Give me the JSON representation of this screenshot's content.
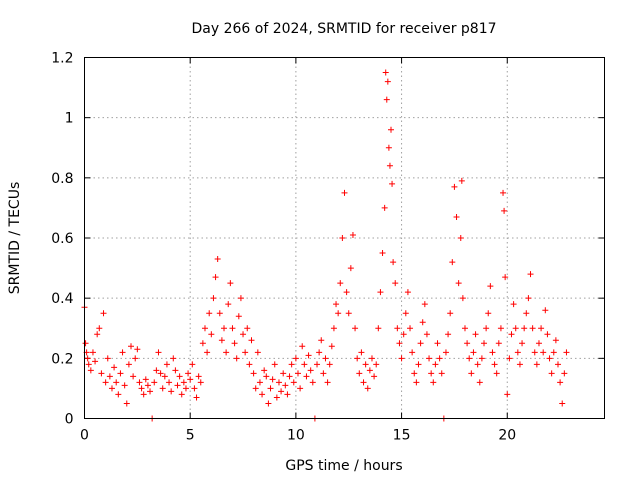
{
  "chart_data": {
    "type": "scatter",
    "title": "Day 266 of 2024, SRMTID for receiver p817",
    "xlabel": "GPS time / hours",
    "ylabel": "SRMTID / TECUs",
    "xlim": [
      0,
      24.6
    ],
    "ylim": [
      0,
      1.2
    ],
    "x_ticks": [
      0,
      5,
      10,
      15,
      20
    ],
    "x_tick_labels": [
      "0",
      "5",
      "10",
      "15",
      "20"
    ],
    "y_ticks": [
      0,
      0.2,
      0.4,
      0.6,
      0.8,
      1.0,
      1.2
    ],
    "y_tick_labels": [
      "0",
      "0.2",
      "0.4",
      "0.6",
      "0.8",
      "1",
      "1.2"
    ],
    "grid": true,
    "marker": "plus",
    "color": "#ff0000",
    "series": [
      {
        "name": "SRMTID",
        "points": [
          [
            0.0,
            0.37
          ],
          [
            0.05,
            0.25
          ],
          [
            0.1,
            0.22
          ],
          [
            0.15,
            0.2
          ],
          [
            0.2,
            0.18
          ],
          [
            0.3,
            0.16
          ],
          [
            0.4,
            0.22
          ],
          [
            0.5,
            0.19
          ],
          [
            0.6,
            0.28
          ],
          [
            0.7,
            0.3
          ],
          [
            0.8,
            0.15
          ],
          [
            0.9,
            0.35
          ],
          [
            1.0,
            0.12
          ],
          [
            1.1,
            0.2
          ],
          [
            1.2,
            0.14
          ],
          [
            1.3,
            0.1
          ],
          [
            1.4,
            0.17
          ],
          [
            1.5,
            0.12
          ],
          [
            1.6,
            0.08
          ],
          [
            1.7,
            0.15
          ],
          [
            1.8,
            0.22
          ],
          [
            1.9,
            0.11
          ],
          [
            2.0,
            0.05
          ],
          [
            2.1,
            0.18
          ],
          [
            2.2,
            0.24
          ],
          [
            2.3,
            0.14
          ],
          [
            2.4,
            0.2
          ],
          [
            2.5,
            0.23
          ],
          [
            2.6,
            0.12
          ],
          [
            2.7,
            0.1
          ],
          [
            2.8,
            0.08
          ],
          [
            2.9,
            0.13
          ],
          [
            3.0,
            0.11
          ],
          [
            3.1,
            0.09
          ],
          [
            3.2,
            0.0
          ],
          [
            3.3,
            0.12
          ],
          [
            3.4,
            0.16
          ],
          [
            3.5,
            0.22
          ],
          [
            3.6,
            0.15
          ],
          [
            3.7,
            0.1
          ],
          [
            3.8,
            0.14
          ],
          [
            3.9,
            0.18
          ],
          [
            4.0,
            0.12
          ],
          [
            4.1,
            0.09
          ],
          [
            4.2,
            0.2
          ],
          [
            4.3,
            0.16
          ],
          [
            4.4,
            0.11
          ],
          [
            4.5,
            0.14
          ],
          [
            4.6,
            0.08
          ],
          [
            4.7,
            0.12
          ],
          [
            4.8,
            0.1
          ],
          [
            4.9,
            0.15
          ],
          [
            5.0,
            0.13
          ],
          [
            5.1,
            0.18
          ],
          [
            5.2,
            0.1
          ],
          [
            5.3,
            0.07
          ],
          [
            5.4,
            0.14
          ],
          [
            5.5,
            0.12
          ],
          [
            5.6,
            0.25
          ],
          [
            5.7,
            0.3
          ],
          [
            5.8,
            0.22
          ],
          [
            5.9,
            0.35
          ],
          [
            6.0,
            0.28
          ],
          [
            6.1,
            0.4
          ],
          [
            6.2,
            0.47
          ],
          [
            6.3,
            0.53
          ],
          [
            6.4,
            0.35
          ],
          [
            6.5,
            0.26
          ],
          [
            6.6,
            0.3
          ],
          [
            6.7,
            0.22
          ],
          [
            6.8,
            0.38
          ],
          [
            6.9,
            0.45
          ],
          [
            7.0,
            0.3
          ],
          [
            7.1,
            0.25
          ],
          [
            7.2,
            0.2
          ],
          [
            7.3,
            0.34
          ],
          [
            7.4,
            0.4
          ],
          [
            7.5,
            0.28
          ],
          [
            7.6,
            0.22
          ],
          [
            7.7,
            0.3
          ],
          [
            7.8,
            0.18
          ],
          [
            7.9,
            0.26
          ],
          [
            8.0,
            0.15
          ],
          [
            8.1,
            0.1
          ],
          [
            8.2,
            0.22
          ],
          [
            8.3,
            0.12
          ],
          [
            8.4,
            0.08
          ],
          [
            8.5,
            0.16
          ],
          [
            8.6,
            0.14
          ],
          [
            8.7,
            0.05
          ],
          [
            8.8,
            0.1
          ],
          [
            8.9,
            0.13
          ],
          [
            9.0,
            0.18
          ],
          [
            9.1,
            0.07
          ],
          [
            9.2,
            0.12
          ],
          [
            9.3,
            0.09
          ],
          [
            9.4,
            0.15
          ],
          [
            9.5,
            0.11
          ],
          [
            9.6,
            0.08
          ],
          [
            9.7,
            0.14
          ],
          [
            9.8,
            0.18
          ],
          [
            9.9,
            0.12
          ],
          [
            10.0,
            0.2
          ],
          [
            10.1,
            0.15
          ],
          [
            10.2,
            0.1
          ],
          [
            10.3,
            0.24
          ],
          [
            10.4,
            0.18
          ],
          [
            10.5,
            0.14
          ],
          [
            10.6,
            0.21
          ],
          [
            10.7,
            0.16
          ],
          [
            10.8,
            0.12
          ],
          [
            10.9,
            0.0
          ],
          [
            11.0,
            0.18
          ],
          [
            11.1,
            0.22
          ],
          [
            11.2,
            0.26
          ],
          [
            11.3,
            0.15
          ],
          [
            11.4,
            0.2
          ],
          [
            11.5,
            0.12
          ],
          [
            11.6,
            0.18
          ],
          [
            11.7,
            0.24
          ],
          [
            11.8,
            0.3
          ],
          [
            11.9,
            0.38
          ],
          [
            12.0,
            0.35
          ],
          [
            12.1,
            0.45
          ],
          [
            12.2,
            0.6
          ],
          [
            12.3,
            0.75
          ],
          [
            12.4,
            0.42
          ],
          [
            12.5,
            0.35
          ],
          [
            12.6,
            0.5
          ],
          [
            12.7,
            0.61
          ],
          [
            12.8,
            0.3
          ],
          [
            12.9,
            0.2
          ],
          [
            13.0,
            0.15
          ],
          [
            13.1,
            0.22
          ],
          [
            13.2,
            0.12
          ],
          [
            13.3,
            0.18
          ],
          [
            13.4,
            0.1
          ],
          [
            13.5,
            0.16
          ],
          [
            13.6,
            0.2
          ],
          [
            13.7,
            0.14
          ],
          [
            13.8,
            0.18
          ],
          [
            13.9,
            0.3
          ],
          [
            14.0,
            0.42
          ],
          [
            14.1,
            0.55
          ],
          [
            14.2,
            0.7
          ],
          [
            14.25,
            1.15
          ],
          [
            14.3,
            1.06
          ],
          [
            14.35,
            1.12
          ],
          [
            14.4,
            0.9
          ],
          [
            14.45,
            0.84
          ],
          [
            14.5,
            0.96
          ],
          [
            14.55,
            0.78
          ],
          [
            14.6,
            0.52
          ],
          [
            14.7,
            0.45
          ],
          [
            14.8,
            0.3
          ],
          [
            14.9,
            0.25
          ],
          [
            15.0,
            0.2
          ],
          [
            15.1,
            0.28
          ],
          [
            15.2,
            0.35
          ],
          [
            15.3,
            0.42
          ],
          [
            15.4,
            0.3
          ],
          [
            15.5,
            0.22
          ],
          [
            15.6,
            0.15
          ],
          [
            15.7,
            0.12
          ],
          [
            15.8,
            0.18
          ],
          [
            15.9,
            0.25
          ],
          [
            16.0,
            0.32
          ],
          [
            16.1,
            0.38
          ],
          [
            16.2,
            0.28
          ],
          [
            16.3,
            0.2
          ],
          [
            16.4,
            0.15
          ],
          [
            16.5,
            0.12
          ],
          [
            16.6,
            0.18
          ],
          [
            16.7,
            0.25
          ],
          [
            16.8,
            0.2
          ],
          [
            16.9,
            0.15
          ],
          [
            17.0,
            0.0
          ],
          [
            17.1,
            0.22
          ],
          [
            17.2,
            0.28
          ],
          [
            17.3,
            0.35
          ],
          [
            17.4,
            0.52
          ],
          [
            17.5,
            0.77
          ],
          [
            17.6,
            0.67
          ],
          [
            17.7,
            0.45
          ],
          [
            17.8,
            0.6
          ],
          [
            17.85,
            0.79
          ],
          [
            17.9,
            0.4
          ],
          [
            18.0,
            0.3
          ],
          [
            18.1,
            0.25
          ],
          [
            18.2,
            0.2
          ],
          [
            18.3,
            0.15
          ],
          [
            18.4,
            0.22
          ],
          [
            18.5,
            0.28
          ],
          [
            18.6,
            0.18
          ],
          [
            18.7,
            0.12
          ],
          [
            18.8,
            0.2
          ],
          [
            18.9,
            0.25
          ],
          [
            19.0,
            0.3
          ],
          [
            19.1,
            0.35
          ],
          [
            19.2,
            0.44
          ],
          [
            19.3,
            0.22
          ],
          [
            19.4,
            0.18
          ],
          [
            19.5,
            0.15
          ],
          [
            19.6,
            0.25
          ],
          [
            19.7,
            0.3
          ],
          [
            19.8,
            0.75
          ],
          [
            19.85,
            0.69
          ],
          [
            19.9,
            0.47
          ],
          [
            20.0,
            0.08
          ],
          [
            20.1,
            0.2
          ],
          [
            20.2,
            0.28
          ],
          [
            20.3,
            0.38
          ],
          [
            20.4,
            0.3
          ],
          [
            20.5,
            0.22
          ],
          [
            20.6,
            0.18
          ],
          [
            20.7,
            0.25
          ],
          [
            20.8,
            0.3
          ],
          [
            20.9,
            0.35
          ],
          [
            21.0,
            0.4
          ],
          [
            21.1,
            0.48
          ],
          [
            21.2,
            0.3
          ],
          [
            21.3,
            0.22
          ],
          [
            21.4,
            0.18
          ],
          [
            21.5,
            0.25
          ],
          [
            21.6,
            0.3
          ],
          [
            21.7,
            0.22
          ],
          [
            21.8,
            0.36
          ],
          [
            21.9,
            0.28
          ],
          [
            22.0,
            0.2
          ],
          [
            22.1,
            0.15
          ],
          [
            22.2,
            0.22
          ],
          [
            22.3,
            0.26
          ],
          [
            22.4,
            0.18
          ],
          [
            22.5,
            0.12
          ],
          [
            22.6,
            0.05
          ],
          [
            22.7,
            0.15
          ],
          [
            22.8,
            0.22
          ]
        ]
      }
    ]
  }
}
